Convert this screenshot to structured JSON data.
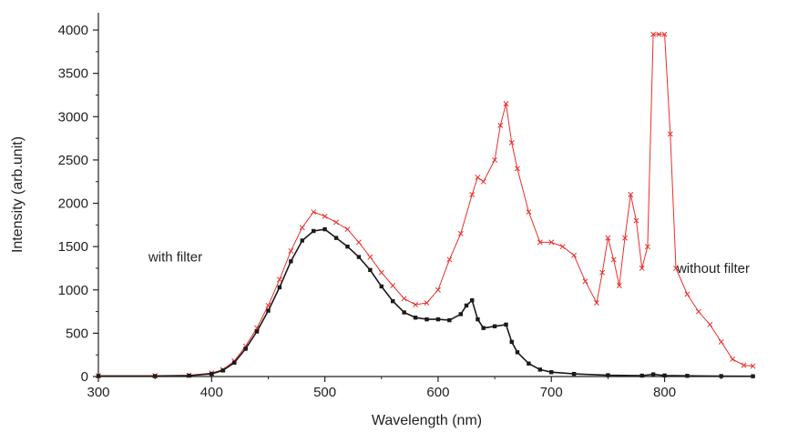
{
  "chart_data": {
    "type": "line",
    "xlabel": "Wavelength (nm)",
    "ylabel": "Intensity (arb.unit)",
    "xlim": [
      300,
      880
    ],
    "ylim": [
      0,
      4200
    ],
    "x_ticks": [
      300,
      400,
      500,
      600,
      700,
      800
    ],
    "y_ticks": [
      0,
      500,
      1000,
      1500,
      2000,
      2500,
      3000,
      3500,
      4000
    ],
    "grid": false,
    "annotations": [
      {
        "text": "with filter",
        "x": 368,
        "y": 1330
      },
      {
        "text": "without filter",
        "x": 843,
        "y": 1195
      }
    ],
    "series": [
      {
        "name": "without filter",
        "color": "#e8302a",
        "marker": "x",
        "x": [
          300,
          350,
          380,
          400,
          410,
          420,
          430,
          440,
          450,
          460,
          470,
          480,
          490,
          500,
          510,
          520,
          530,
          540,
          550,
          560,
          570,
          580,
          590,
          600,
          610,
          620,
          630,
          635,
          640,
          650,
          655,
          660,
          665,
          670,
          680,
          690,
          700,
          710,
          720,
          730,
          740,
          745,
          750,
          755,
          760,
          765,
          770,
          775,
          780,
          785,
          790,
          795,
          800,
          805,
          810,
          820,
          830,
          840,
          850,
          860,
          870,
          878
        ],
        "y": [
          10,
          10,
          15,
          40,
          80,
          180,
          350,
          560,
          820,
          1120,
          1450,
          1720,
          1900,
          1850,
          1780,
          1700,
          1550,
          1380,
          1200,
          1050,
          900,
          830,
          850,
          1000,
          1350,
          1650,
          2100,
          2300,
          2250,
          2500,
          2900,
          3150,
          2700,
          2400,
          1900,
          1550,
          1550,
          1500,
          1400,
          1100,
          850,
          1200,
          1600,
          1350,
          1050,
          1600,
          2100,
          1800,
          1250,
          1500,
          3950,
          3950,
          3950,
          2800,
          1250,
          950,
          750,
          600,
          400,
          200,
          130,
          120
        ]
      },
      {
        "name": "with filter",
        "color": "#1a1a1a",
        "marker": "square",
        "x": [
          300,
          350,
          380,
          400,
          410,
          420,
          430,
          440,
          450,
          460,
          470,
          480,
          490,
          500,
          510,
          520,
          530,
          540,
          550,
          560,
          570,
          580,
          590,
          600,
          610,
          620,
          625,
          630,
          635,
          640,
          650,
          660,
          665,
          670,
          680,
          690,
          700,
          720,
          750,
          780,
          790,
          800,
          820,
          850,
          878
        ],
        "y": [
          5,
          5,
          10,
          30,
          70,
          160,
          320,
          520,
          760,
          1030,
          1330,
          1570,
          1680,
          1700,
          1600,
          1500,
          1380,
          1230,
          1040,
          870,
          740,
          680,
          660,
          660,
          650,
          720,
          820,
          880,
          660,
          560,
          580,
          600,
          400,
          280,
          150,
          80,
          50,
          30,
          15,
          10,
          25,
          12,
          8,
          5,
          3
        ]
      }
    ]
  }
}
